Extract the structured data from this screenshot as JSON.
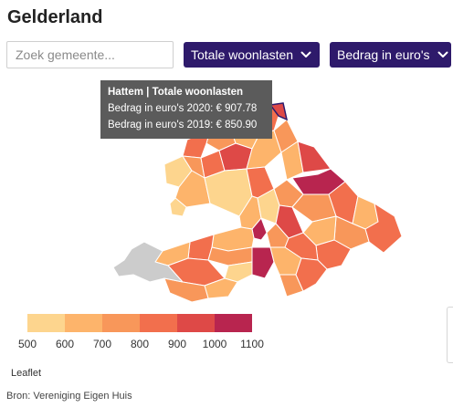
{
  "title": "Gelderland",
  "search": {
    "placeholder": "Zoek gemeente..."
  },
  "dropdowns": [
    {
      "label": "Totale woonlasten"
    },
    {
      "label": "Bedrag in euro's"
    }
  ],
  "tooltip": {
    "title": "Hattem | Totale woonlasten",
    "line1": "Bedrag in euro's 2020: € 907.78",
    "line2": "Bedrag in euro's 2019: € 850.90"
  },
  "legend": {
    "ticks": [
      "500",
      "600",
      "700",
      "800",
      "900",
      "1000",
      "1100"
    ],
    "colors": [
      "#fdd58e",
      "#fdb46b",
      "#f8975a",
      "#f26f4d",
      "#de4947",
      "#b8254f"
    ]
  },
  "map_colors": {
    "very_light": "#fdd58e",
    "light": "#fdb46b",
    "mid": "#f8975a",
    "orange": "#f26f4d",
    "red": "#de4947",
    "dark": "#b8254f",
    "no_data": "#cccccc",
    "border": "#ffffff"
  },
  "attribution": "Leaflet",
  "source": "Bron: Vereniging Eigen Huis"
}
